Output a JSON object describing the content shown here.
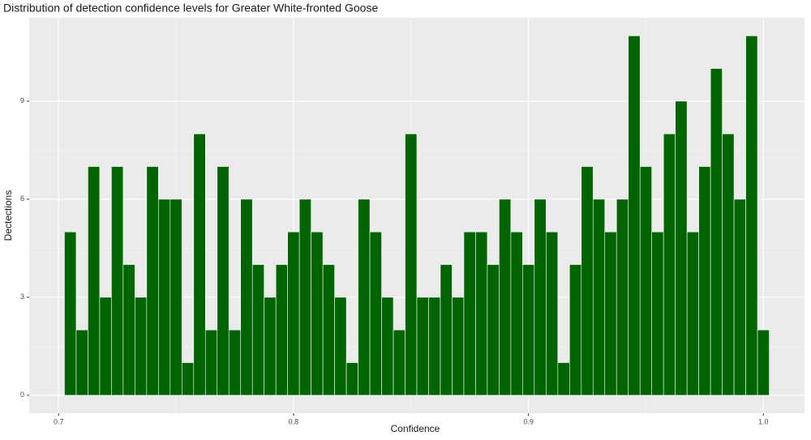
{
  "chart_data": {
    "type": "histogram",
    "title": "Distribution of detection confidence levels for Greater White-fronted Goose",
    "x_label": "Confidence",
    "y_label": "Dectections",
    "bins": [
      0.7025,
      0.7075,
      0.7125,
      0.7175,
      0.7225,
      0.7275,
      0.7325,
      0.7375,
      0.7425,
      0.7475,
      0.7525,
      0.7575,
      0.7625,
      0.7675,
      0.7725,
      0.7775,
      0.7825,
      0.7875,
      0.7925,
      0.7975,
      0.8025,
      0.8075,
      0.8125,
      0.8175,
      0.8225,
      0.8275,
      0.8325,
      0.8375,
      0.8425,
      0.8475,
      0.8525,
      0.8575,
      0.8625,
      0.8675,
      0.8725,
      0.8775,
      0.8825,
      0.8875,
      0.8925,
      0.8975,
      0.9025,
      0.9075,
      0.9125,
      0.9175,
      0.9225,
      0.9275,
      0.9325,
      0.9375,
      0.9425,
      0.9475,
      0.9525,
      0.9575,
      0.9625,
      0.9675,
      0.9725,
      0.9775,
      0.9825,
      0.9875,
      0.9925,
      0.9975,
      1.0025
    ],
    "values": [
      5,
      2,
      7,
      3,
      7,
      4,
      3,
      7,
      6,
      6,
      1,
      8,
      2,
      7,
      2,
      6,
      4,
      3,
      4,
      5,
      6,
      5,
      4,
      3,
      1,
      6,
      5,
      3,
      2,
      8,
      3,
      3,
      4,
      3,
      5,
      5,
      4,
      6,
      5,
      4,
      6,
      5,
      1,
      4,
      7,
      6,
      5,
      6,
      11,
      7,
      5,
      8,
      9,
      5,
      7,
      10,
      8,
      6,
      11,
      2
    ],
    "color": "#006400",
    "xlim": [
      0.6875,
      1.0175
    ],
    "ylim": [
      -0.55,
      11.55
    ],
    "xticks": [
      0.7,
      0.8,
      0.9,
      {
        "value": 1.0,
        "label": "1.0"
      }
    ],
    "yticks": [
      0,
      3,
      6,
      9
    ],
    "grid": true
  }
}
